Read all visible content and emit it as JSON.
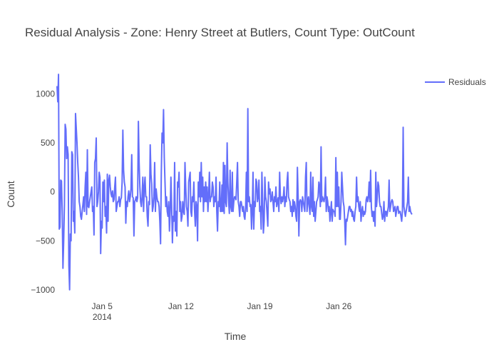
{
  "chart_data": {
    "type": "line",
    "title": "Residual Analysis - Zone: Henry Street at Butlers, Count Type: OutCount",
    "xlabel": "Time",
    "ylabel": "Count",
    "x_axis_type": "date",
    "x_start": "2014-01-01T00:00",
    "x_end": "2014-02-01T12:00",
    "xlim": [
      "2014-01-01T00:00",
      "2014-02-01T12:00"
    ],
    "ylim": [
      -1030,
      1230
    ],
    "x_ticks": [
      {
        "date": "2014-01-05",
        "label": "Jan 5",
        "sublabel": "2014"
      },
      {
        "date": "2014-01-12",
        "label": "Jan 12",
        "sublabel": ""
      },
      {
        "date": "2014-01-19",
        "label": "Jan 19",
        "sublabel": ""
      },
      {
        "date": "2014-01-26",
        "label": "Jan 26",
        "sublabel": ""
      }
    ],
    "y_ticks": [
      {
        "value": 1000,
        "label": "1000"
      },
      {
        "value": 500,
        "label": "500"
      },
      {
        "value": 0,
        "label": "0"
      },
      {
        "value": -500,
        "label": "−500"
      },
      {
        "value": -1000,
        "label": "−1000"
      }
    ],
    "grid": false,
    "legend_position": "top-right",
    "series": [
      {
        "name": "Residuals",
        "color": "#636efa",
        "values": [
          1080,
          920,
          1200,
          -380,
          -360,
          120,
          110,
          -200,
          -780,
          -500,
          -130,
          690,
          640,
          340,
          460,
          380,
          -750,
          -1000,
          -430,
          -500,
          410,
          380,
          -300,
          -200,
          -420,
          800,
          650,
          500,
          300,
          150,
          -100,
          -150,
          -250,
          -280,
          -200,
          -130,
          -50,
          -200,
          50,
          200,
          -230,
          430,
          -150,
          -160,
          -100,
          -50,
          0,
          50,
          -200,
          -150,
          -440,
          300,
          340,
          550,
          -150,
          -100,
          0,
          200,
          150,
          -630,
          -300,
          -370,
          100,
          -100,
          120,
          -250,
          -150,
          -420,
          180,
          -300,
          120,
          170,
          50,
          -20,
          -50,
          10,
          -100,
          -80,
          50,
          150,
          -200,
          -150,
          -100,
          -100,
          -50,
          -150,
          -80,
          -60,
          100,
          630,
          220,
          100,
          50,
          -320,
          -100,
          -150,
          -50,
          10,
          -100,
          -50,
          30,
          380,
          -50,
          -60,
          -450,
          -100,
          -80,
          -50,
          -100,
          -60,
          720,
          300,
          50,
          -100,
          -150,
          -50,
          150,
          -200,
          50,
          150,
          -50,
          -50,
          -250,
          -350,
          -100,
          -130,
          480,
          180,
          80,
          -200,
          -150,
          -50,
          300,
          -200,
          30,
          -50,
          -100,
          -100,
          -150,
          -300,
          -530,
          200,
          600,
          500,
          840,
          350,
          100,
          -150,
          -50,
          -200,
          -250,
          -100,
          -400,
          -200,
          150,
          -150,
          -520,
          -250,
          -300,
          300,
          -400,
          -200,
          -450,
          100,
          50,
          200,
          -200,
          -100,
          -300,
          -250,
          -100,
          -200,
          -230,
          300,
          50,
          -150,
          -200,
          -350,
          100,
          150,
          200,
          -200,
          -250,
          -50,
          -100,
          100,
          -200,
          -350,
          -100,
          -150,
          -500,
          100,
          -50,
          200,
          -100,
          300,
          -50,
          150,
          -200,
          50,
          -100,
          100,
          -100,
          50,
          -200,
          -50,
          200,
          -100,
          -50,
          -50,
          100,
          50,
          -150,
          -50,
          -100,
          150,
          -200,
          -400,
          -100,
          -150,
          100,
          -200,
          -200,
          70,
          -200,
          300,
          -220,
          270,
          -100,
          -150,
          500,
          100,
          -100,
          -220,
          220,
          -150,
          -200,
          200,
          -200,
          -100,
          -50,
          -50,
          -80,
          100,
          300,
          -100,
          -150,
          -250,
          -100,
          -100,
          -150,
          -200,
          -150,
          -250,
          -280,
          -160,
          200,
          -200,
          850,
          -100,
          -50,
          -150,
          -130,
          -380,
          -200,
          200,
          -380,
          -100,
          -150,
          130,
          100,
          -100,
          -50,
          120,
          -200,
          -150,
          -380,
          200,
          -100,
          -420,
          -300,
          150,
          -50,
          -100,
          -220,
          -350,
          100,
          -20,
          30,
          -100,
          -80,
          0,
          -100,
          -200,
          -50,
          -100,
          50,
          -150,
          -100,
          -60,
          -200,
          200,
          -50,
          -120,
          -50,
          -100,
          -50,
          50,
          -150,
          -50,
          -100,
          100,
          200,
          -50,
          -80,
          -100,
          -200,
          -150,
          -250,
          -80,
          -200,
          -100,
          -150,
          -250,
          -300,
          250,
          -50,
          -450,
          -100,
          -80,
          -100,
          -200,
          -50,
          -100,
          -150,
          -200,
          150,
          300,
          -200,
          -100,
          -50,
          -150,
          -230,
          200,
          -150,
          -200,
          150,
          -250,
          -100,
          -300,
          -200,
          -100,
          -80,
          -50,
          100,
          50,
          -150,
          460,
          -100,
          -50,
          -80,
          -100,
          -50,
          150,
          -200,
          -50,
          -100,
          -200,
          -150,
          -300,
          -200,
          -100,
          -300,
          -180,
          -200,
          -200,
          -250,
          350,
          -150,
          200,
          -150,
          50,
          -280,
          -280,
          -100,
          200,
          50,
          -100,
          -150,
          -300,
          -540,
          -280,
          -300,
          -250,
          -200,
          -150,
          -150,
          -200,
          -180,
          -250,
          -200,
          -280,
          -300,
          -200,
          -150,
          150,
          -100,
          -50,
          -150,
          -200,
          -100,
          -300,
          -200,
          -150,
          -250,
          -200,
          -230,
          -200,
          -80,
          -50,
          -100,
          -50,
          100,
          -100,
          220,
          -150,
          -250,
          -200,
          -300,
          -200,
          -350,
          200,
          -150,
          -50,
          100,
          60,
          -100,
          -150,
          -150,
          -220,
          -280,
          -250,
          -100,
          -300,
          -200,
          -200,
          -250,
          -200,
          -150,
          120,
          -200,
          -150,
          -100,
          -80,
          -100,
          -200,
          -180,
          -150,
          -250,
          -200,
          -150,
          -150,
          -220,
          -200,
          -200,
          -250,
          -300,
          -200,
          660,
          -150,
          -200,
          -250,
          -200,
          -150,
          -100,
          150,
          -200,
          -150,
          -200,
          -220,
          -230
        ]
      }
    ]
  }
}
